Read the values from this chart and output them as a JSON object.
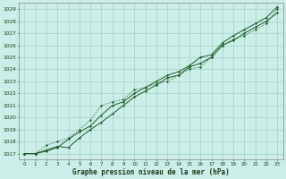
{
  "xlabel": "Graphe pression niveau de la mer (hPa)",
  "bg_color": "#cceee8",
  "grid_color": "#aad4cc",
  "line_color": "#1a5c2a",
  "xlim": [
    -0.5,
    23.5
  ],
  "ylim": [
    1016.5,
    1029.5
  ],
  "yticks": [
    1017,
    1018,
    1019,
    1020,
    1021,
    1022,
    1023,
    1024,
    1025,
    1026,
    1027,
    1028,
    1029
  ],
  "xticks": [
    0,
    1,
    2,
    3,
    4,
    5,
    6,
    7,
    8,
    9,
    10,
    11,
    12,
    13,
    14,
    15,
    16,
    17,
    18,
    19,
    20,
    21,
    22,
    23
  ],
  "series1_x": [
    0,
    1,
    2,
    3,
    4,
    5,
    6,
    7,
    8,
    9,
    10,
    11,
    12,
    13,
    14,
    15,
    16,
    17,
    18,
    19,
    20,
    21,
    22,
    23
  ],
  "series1_y": [
    1017.0,
    1017.0,
    1017.3,
    1017.6,
    1017.5,
    1018.3,
    1019.0,
    1019.6,
    1020.3,
    1021.0,
    1021.7,
    1022.2,
    1022.7,
    1023.3,
    1023.5,
    1024.2,
    1024.5,
    1025.0,
    1026.0,
    1026.4,
    1027.0,
    1027.5,
    1028.0,
    1028.7
  ],
  "series2_x": [
    0,
    1,
    2,
    3,
    4,
    5,
    6,
    7,
    8,
    9,
    10,
    11,
    12,
    13,
    14,
    15,
    16,
    17,
    18,
    19,
    20,
    21,
    22,
    23
  ],
  "series2_y": [
    1017.0,
    1017.0,
    1017.7,
    1018.0,
    1018.3,
    1019.0,
    1019.8,
    1021.0,
    1021.3,
    1021.5,
    1022.3,
    1022.5,
    1022.8,
    1023.0,
    1023.5,
    1024.0,
    1024.2,
    1025.0,
    1026.0,
    1026.5,
    1026.8,
    1027.3,
    1027.8,
    1029.0
  ],
  "series3_x": [
    0,
    1,
    2,
    3,
    4,
    5,
    6,
    7,
    8,
    9,
    10,
    11,
    12,
    13,
    14,
    15,
    16,
    17,
    18,
    19,
    20,
    21,
    22,
    23
  ],
  "series3_y": [
    1017.0,
    1017.0,
    1017.2,
    1017.5,
    1018.2,
    1018.8,
    1019.3,
    1020.2,
    1021.0,
    1021.3,
    1022.0,
    1022.5,
    1023.0,
    1023.5,
    1023.8,
    1024.3,
    1025.0,
    1025.2,
    1026.2,
    1026.8,
    1027.3,
    1027.8,
    1028.3,
    1029.2
  ]
}
